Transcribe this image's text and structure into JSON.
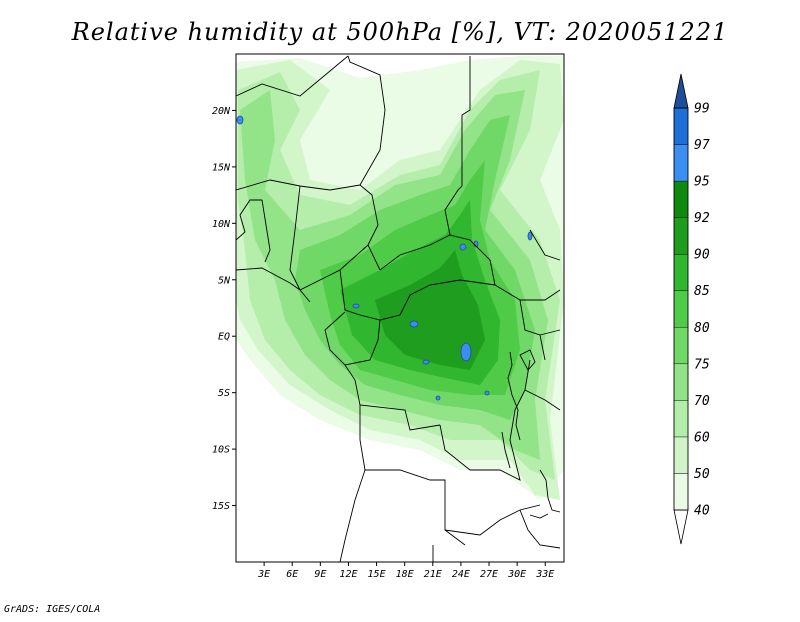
{
  "title": "Relative humidity at 500hPa [%], VT: 2020051221",
  "credit": "GrADS: IGES/COLA",
  "map": {
    "lon_labels": [
      "3E",
      "6E",
      "9E",
      "12E",
      "15E",
      "18E",
      "21E",
      "24E",
      "27E",
      "30E",
      "33E"
    ],
    "lat_labels": [
      "20N",
      "15N",
      "10N",
      "5N",
      "EQ",
      "5S",
      "10S",
      "15S"
    ],
    "lon_values": [
      3,
      6,
      9,
      12,
      15,
      18,
      21,
      24,
      27,
      30,
      33
    ],
    "lat_values": [
      20,
      15,
      10,
      5,
      0,
      -5,
      -10,
      -15
    ],
    "lon_range": [
      0,
      35
    ],
    "lat_range": [
      -20,
      25
    ]
  },
  "colorbar": {
    "labels": [
      "40",
      "50",
      "60",
      "70",
      "75",
      "80",
      "85",
      "90",
      "92",
      "95",
      "97",
      "99"
    ],
    "colors": [
      "#ffffff",
      "#e9fbe5",
      "#d0f4c7",
      "#b2eea8",
      "#92e387",
      "#6fd866",
      "#4fcb47",
      "#30b62f",
      "#1e9c1e",
      "#0f8a0f",
      "#3a8ff0",
      "#1f6fd8",
      "#0f55b8",
      "#1e4d99"
    ]
  }
}
